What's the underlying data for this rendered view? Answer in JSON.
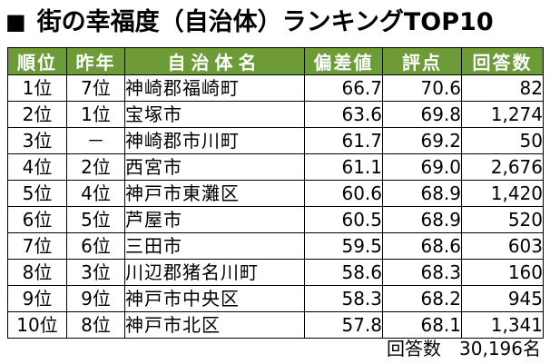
{
  "title_marker": "■",
  "chart_data": {
    "type": "table",
    "title": "街の幸福度（自治体）ランキングTOP10",
    "columns": [
      "順位",
      "昨年",
      "自治体名",
      "偏差値",
      "評点",
      "回答数"
    ],
    "rows": [
      [
        "1位",
        "7位",
        "神崎郡福崎町",
        "66.7",
        "70.6",
        "82"
      ],
      [
        "2位",
        "1位",
        "宝塚市",
        "63.6",
        "69.8",
        "1,274"
      ],
      [
        "3位",
        "－",
        "神崎郡市川町",
        "61.7",
        "69.2",
        "50"
      ],
      [
        "4位",
        "2位",
        "西宮市",
        "61.1",
        "69.0",
        "2,676"
      ],
      [
        "5位",
        "4位",
        "神戸市東灘区",
        "60.6",
        "68.9",
        "1,420"
      ],
      [
        "6位",
        "5位",
        "芦屋市",
        "60.5",
        "68.9",
        "520"
      ],
      [
        "7位",
        "6位",
        "三田市",
        "59.5",
        "68.6",
        "603"
      ],
      [
        "8位",
        "3位",
        "川辺郡猪名川町",
        "58.6",
        "68.3",
        "160"
      ],
      [
        "9位",
        "9位",
        "神戸市中央区",
        "58.3",
        "68.2",
        "945"
      ],
      [
        "10位",
        "8位",
        "神戸市北区",
        "57.8",
        "68.1",
        "1,341"
      ]
    ],
    "footer": "回答数　30,196名"
  },
  "colors": {
    "header_bg": "#6d9b3a",
    "header_text": "#ffffff",
    "border": "#000000"
  }
}
